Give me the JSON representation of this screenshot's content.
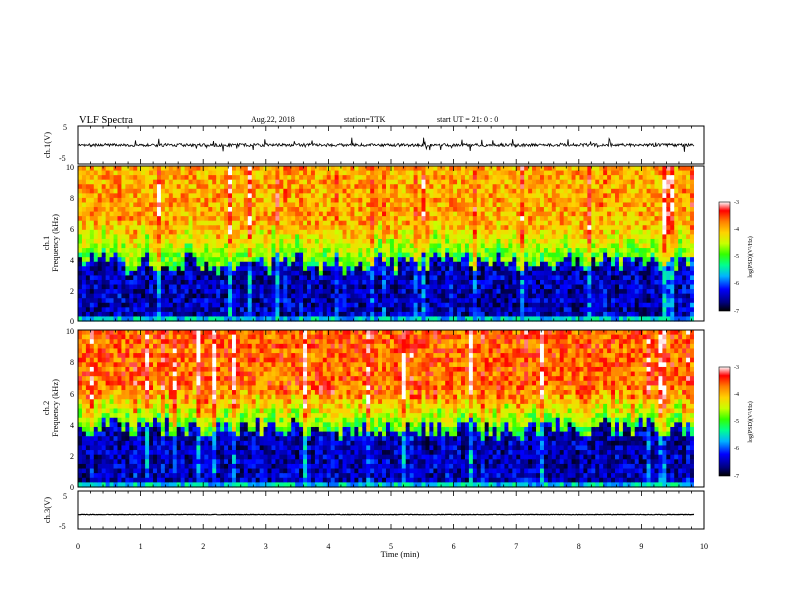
{
  "header": {
    "title": "VLF Spectra",
    "date": "Aug.22, 2018",
    "station": "station=TTK",
    "start": "start UT =   21: 0  : 0"
  },
  "chart_data": [
    {
      "type": "line",
      "panel": "ch1_waveform",
      "ylabel": "ch.1(V)",
      "ylim": [
        -5,
        5
      ],
      "y_ticks": [
        "5",
        "-5"
      ],
      "baseline_value": 0,
      "xlim": [
        0,
        10
      ]
    },
    {
      "type": "heatmap",
      "panel": "ch1_spectrogram",
      "ylabel_line1": "ch.1",
      "ylabel_line2": "Frequency (kHz)",
      "ylim": [
        0,
        10
      ],
      "y_ticks": [
        "0",
        "2",
        "4",
        "6",
        "8",
        "10"
      ],
      "xlim": [
        0,
        10
      ],
      "data_end_x": 9.84,
      "colorbar": {
        "label": "log(PSD)(V²/Hz)",
        "range": [
          -7,
          -3
        ],
        "ticks": [
          "-3",
          "-4",
          "-5",
          "-6",
          "-7"
        ]
      }
    },
    {
      "type": "heatmap",
      "panel": "ch2_spectrogram",
      "ylabel_line1": "ch.2",
      "ylabel_line2": "Frequency (kHz)",
      "ylim": [
        0,
        10
      ],
      "y_ticks": [
        "0",
        "2",
        "4",
        "6",
        "8",
        "10"
      ],
      "xlim": [
        0,
        10
      ],
      "data_end_x": 9.84,
      "colorbar": {
        "label": "log(PSD)(V²/Hz)",
        "range": [
          -7,
          -3
        ],
        "ticks": [
          "-3",
          "-4",
          "-5",
          "-6",
          "-7"
        ]
      }
    },
    {
      "type": "line",
      "panel": "ch3_waveform",
      "ylabel": "ch.3(V)",
      "ylim": [
        -5,
        5
      ],
      "y_ticks": [
        "5",
        "-5"
      ],
      "baseline_value": -1.2,
      "xlim": [
        0,
        10
      ]
    }
  ],
  "x_axis": {
    "label": "Time (min)",
    "ticks": [
      "0",
      "1",
      "2",
      "3",
      "4",
      "5",
      "6",
      "7",
      "8",
      "9",
      "10"
    ]
  },
  "colors": {
    "spectrum": [
      "#000000",
      "#00007f",
      "#0000ff",
      "#00b4ff",
      "#00ff90",
      "#33ff00",
      "#c8ff00",
      "#ffd200",
      "#ff8000",
      "#ff0000",
      "#ffffff"
    ]
  }
}
